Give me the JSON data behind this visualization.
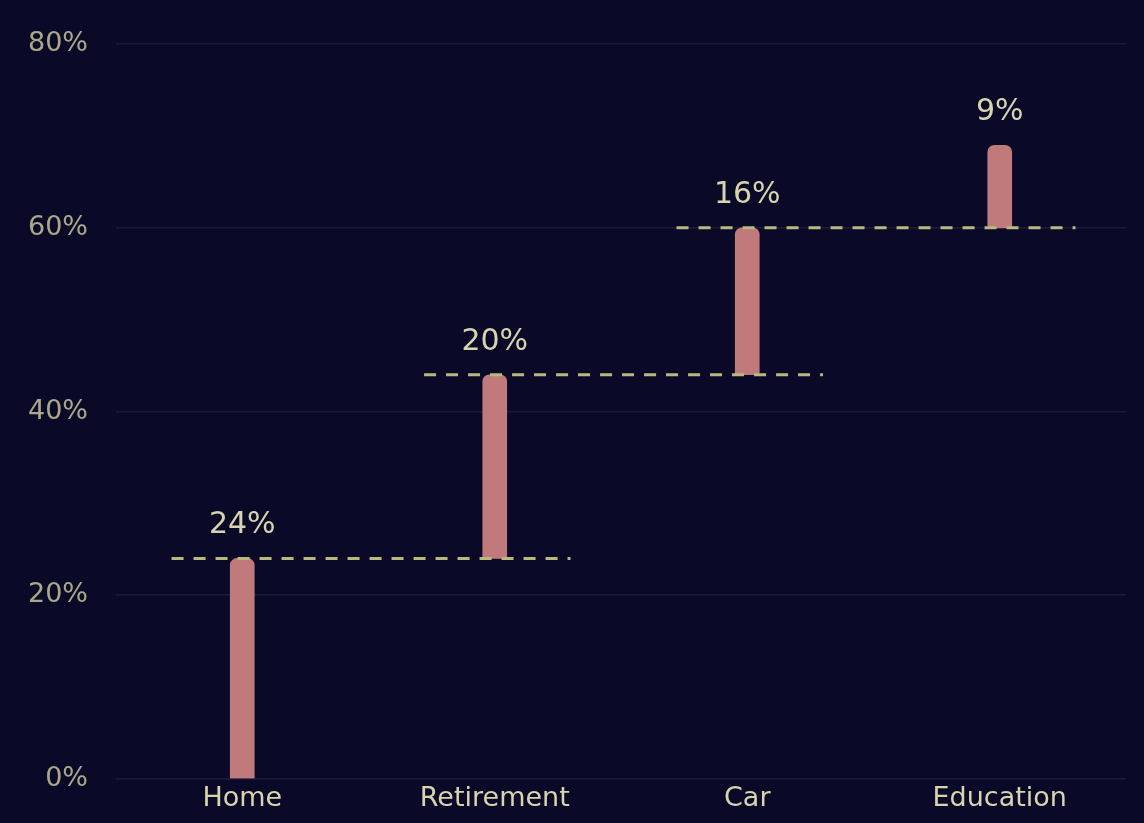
{
  "chart_data": {
    "type": "bar",
    "categories": [
      "Home",
      "Retirement",
      "Car",
      "Education"
    ],
    "values": [
      24,
      20,
      16,
      9
    ],
    "base": [
      0,
      24,
      44,
      60
    ],
    "value_labels": [
      "24%",
      "20%",
      "16%",
      "9%"
    ],
    "color": "#c07a7c",
    "ylim": [
      0,
      80
    ],
    "yticks": [
      {
        "value": 0,
        "label": "0%"
      },
      {
        "value": 20,
        "label": "20%"
      },
      {
        "value": 40,
        "label": "40%"
      },
      {
        "value": 60,
        "label": "60%"
      },
      {
        "value": 80,
        "label": "80%"
      }
    ],
    "ref_lines": [
      {
        "axis": "y",
        "value": 24,
        "color": "#b9b97f",
        "line_style": "dashed"
      },
      {
        "axis": "y",
        "value": 44,
        "color": "#b9b97f",
        "line_style": "dashed"
      },
      {
        "axis": "y",
        "value": 60,
        "color": "#b9b97f",
        "line_style": "dashed"
      }
    ],
    "grid": "y",
    "legend": false
  }
}
